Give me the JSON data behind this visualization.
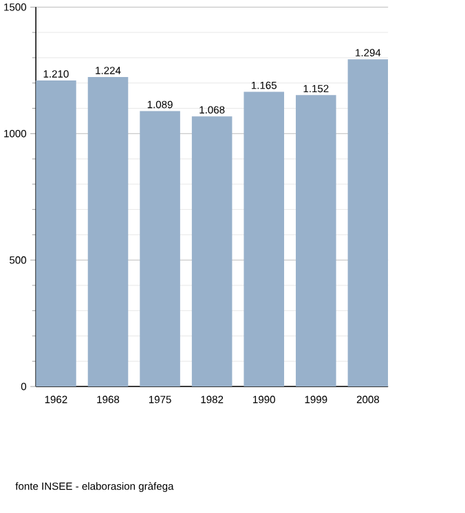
{
  "chart_data": {
    "type": "bar",
    "categories": [
      "1962",
      "1968",
      "1975",
      "1982",
      "1990",
      "1999",
      "2008"
    ],
    "values": [
      1210,
      1224,
      1089,
      1068,
      1165,
      1152,
      1294
    ],
    "value_labels": [
      "1.210",
      "1.224",
      "1.089",
      "1.068",
      "1.165",
      "1.152",
      "1.294"
    ],
    "color": "#98b1cb",
    "ylim": [
      0,
      1500
    ],
    "yticks": [
      0,
      500,
      1000,
      1500
    ],
    "grid": "y",
    "annotations": [
      "fonte INSEE - elaborasion gràfega"
    ]
  }
}
